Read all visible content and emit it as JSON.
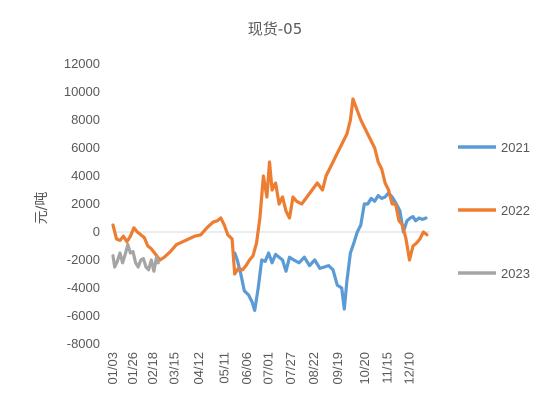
{
  "chart_data": {
    "type": "line",
    "title": "现货-05",
    "xlabel": "",
    "ylabel": "元/吨",
    "ylim": [
      -8000,
      12000
    ],
    "yticks": [
      -8000,
      -6000,
      -4000,
      -2000,
      0,
      2000,
      4000,
      6000,
      8000,
      10000,
      12000
    ],
    "ytick_labels": [
      "-8000",
      "-6000",
      "-4000",
      "-2000",
      "0",
      "2000",
      "4000",
      "6000",
      "8000",
      "10000",
      "12000"
    ],
    "x_tick_labels": [
      "01/03",
      "01/26",
      "02/18",
      "03/15",
      "04/12",
      "05/11",
      "06/06",
      "07/01",
      "07/27",
      "08/22",
      "09/19",
      "10/20",
      "11/15",
      "12/10"
    ],
    "x_axis": "day of year (month/day)",
    "grid": false,
    "legend_position": "right",
    "series": [
      {
        "name": "2021",
        "color": "#5b9bd5",
        "x": [
          "05/23",
          "05/26",
          "05/30",
          "06/03",
          "06/08",
          "06/12",
          "06/15",
          "06/19",
          "06/23",
          "06/27",
          "07/01",
          "07/05",
          "07/09",
          "07/13",
          "07/17",
          "07/21",
          "07/25",
          "07/30",
          "08/05",
          "08/11",
          "08/17",
          "08/23",
          "08/29",
          "09/03",
          "09/08",
          "09/13",
          "09/18",
          "09/23",
          "09/26",
          "09/29",
          "10/03",
          "10/07",
          "10/11",
          "10/15",
          "10/19",
          "10/23",
          "10/27",
          "10/31",
          "11/04",
          "11/08",
          "11/12",
          "11/16",
          "11/20",
          "11/25",
          "11/29",
          "12/03",
          "12/07",
          "12/11",
          "12/14",
          "12/17",
          "12/21",
          "12/25",
          "12/29"
        ],
        "y": [
          -1500,
          -2000,
          -3000,
          -4200,
          -4500,
          -5000,
          -5600,
          -4000,
          -2000,
          -2100,
          -1500,
          -2200,
          -1600,
          -1800,
          -2000,
          -2800,
          -1800,
          -2000,
          -2200,
          -1800,
          -2400,
          -2000,
          -2600,
          -2500,
          -2400,
          -2700,
          -3800,
          -4000,
          -5500,
          -3500,
          -1500,
          -800,
          0,
          500,
          2000,
          2000,
          2400,
          2200,
          2600,
          2400,
          2500,
          2800,
          2500,
          2000,
          1500,
          0,
          800,
          1000,
          1100,
          800,
          1000,
          900,
          1000
        ]
      },
      {
        "name": "2022",
        "color": "#ed7d31",
        "x": [
          "01/03",
          "01/07",
          "01/11",
          "01/15",
          "01/19",
          "01/23",
          "01/27",
          "01/31",
          "02/04",
          "02/08",
          "02/12",
          "02/16",
          "02/21",
          "02/26",
          "03/03",
          "03/10",
          "03/17",
          "03/24",
          "03/31",
          "04/07",
          "04/14",
          "04/21",
          "04/28",
          "05/03",
          "05/07",
          "05/11",
          "05/15",
          "05/20",
          "05/23",
          "05/27",
          "06/01",
          "06/05",
          "06/09",
          "06/13",
          "06/17",
          "06/21",
          "06/25",
          "06/29",
          "07/02",
          "07/05",
          "07/09",
          "07/13",
          "07/17",
          "07/21",
          "07/25",
          "07/29",
          "08/02",
          "08/08",
          "08/14",
          "08/20",
          "08/26",
          "09/01",
          "09/05",
          "09/09",
          "09/13",
          "09/17",
          "09/21",
          "09/25",
          "09/29",
          "10/03",
          "10/06",
          "10/09",
          "10/12",
          "10/15",
          "10/19",
          "10/23",
          "10/27",
          "10/31",
          "11/04",
          "11/08",
          "11/12",
          "11/16",
          "11/20",
          "11/24",
          "11/28",
          "12/02",
          "12/06",
          "12/10",
          "12/14",
          "12/18",
          "12/22",
          "12/26",
          "12/30"
        ],
        "y": [
          500,
          -500,
          -600,
          -300,
          -700,
          -300,
          300,
          0,
          -200,
          -400,
          -1000,
          -1200,
          -1600,
          -2000,
          -1800,
          -1400,
          -900,
          -700,
          -500,
          -300,
          -200,
          300,
          700,
          800,
          1000,
          500,
          -200,
          -500,
          -3000,
          -2600,
          -2700,
          -2400,
          -2000,
          -1700,
          -800,
          1000,
          4000,
          2500,
          5000,
          3000,
          3500,
          2000,
          2500,
          1500,
          1000,
          2500,
          2200,
          2000,
          2500,
          3000,
          3500,
          3000,
          4000,
          4500,
          5000,
          5500,
          6000,
          6500,
          7000,
          8000,
          9500,
          9000,
          8500,
          8000,
          7500,
          7000,
          6500,
          6000,
          5000,
          4500,
          3500,
          3000,
          2000,
          2000,
          800,
          500,
          -500,
          -2000,
          -1000,
          -800,
          -500,
          0,
          -200
        ]
      },
      {
        "name": "2023",
        "color": "#a5a5a5",
        "x": [
          "01/03",
          "01/05",
          "01/08",
          "01/11",
          "01/14",
          "01/17",
          "01/20",
          "01/23",
          "01/26",
          "01/29",
          "02/01",
          "02/04",
          "02/07",
          "02/10",
          "02/13",
          "02/16",
          "02/19",
          "02/22",
          "02/24"
        ],
        "y": [
          -1700,
          -2500,
          -2100,
          -1500,
          -2200,
          -1600,
          -900,
          -1500,
          -1400,
          -2200,
          -2500,
          -2000,
          -1900,
          -2500,
          -2700,
          -2000,
          -2800,
          -1800,
          -2200
        ]
      }
    ]
  }
}
